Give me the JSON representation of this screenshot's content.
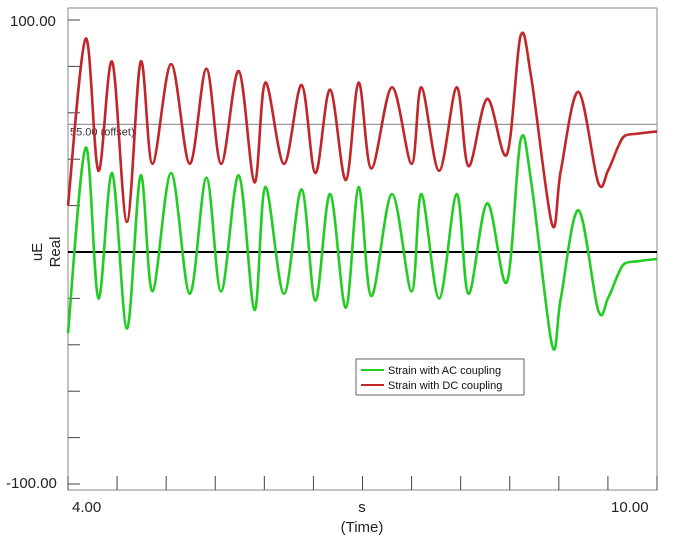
{
  "chart_data": {
    "type": "line",
    "title": "",
    "xlabel": "s",
    "xlabel_sub": "(Time)",
    "ylabel": "uE",
    "ylabel_sub": "Real",
    "x_tick_labels": [
      "4.00",
      "10.00"
    ],
    "y_tick_labels": [
      "100.00",
      "-100.00"
    ],
    "xlim": [
      4,
      10
    ],
    "ylim": [
      -100,
      100
    ],
    "grid": false,
    "zero_line": 0,
    "offset_line": {
      "value": 55,
      "label": "55.00 (offset)"
    },
    "legend_position": "lower-right",
    "series": [
      {
        "name": "Strain with AC coupling",
        "color": "#22cc22",
        "x": [
          4.0,
          4.18,
          4.31,
          4.45,
          4.6,
          4.74,
          4.86,
          5.05,
          5.24,
          5.41,
          5.56,
          5.74,
          5.9,
          6.01,
          6.2,
          6.38,
          6.52,
          6.67,
          6.83,
          6.96,
          7.09,
          7.3,
          7.5,
          7.6,
          7.78,
          7.96,
          8.08,
          8.27,
          8.47,
          8.61,
          8.72,
          8.93,
          9.02,
          9.2,
          9.4,
          9.5,
          9.6,
          9.67,
          9.8,
          10.0
        ],
        "values": [
          -35,
          45,
          -20,
          34,
          -33,
          33,
          -17,
          34,
          -18,
          32,
          -17,
          33,
          -25,
          28,
          -18,
          27,
          -21,
          25,
          -24,
          28,
          -19,
          25,
          -17,
          25,
          -20,
          25,
          -18,
          21,
          -13,
          48,
          30,
          -40,
          -20,
          18,
          -25,
          -20,
          -10,
          -5,
          -4,
          -3
        ]
      },
      {
        "name": "Strain with DC coupling",
        "color": "#c0262a",
        "x": [
          4.0,
          4.18,
          4.31,
          4.45,
          4.6,
          4.74,
          4.86,
          5.05,
          5.24,
          5.41,
          5.56,
          5.74,
          5.9,
          6.01,
          6.2,
          6.38,
          6.52,
          6.67,
          6.83,
          6.96,
          7.09,
          7.3,
          7.5,
          7.6,
          7.78,
          7.96,
          8.08,
          8.27,
          8.47,
          8.61,
          8.72,
          8.93,
          9.02,
          9.2,
          9.4,
          9.5,
          9.6,
          9.67,
          9.8,
          10.0
        ],
        "values": [
          20,
          92,
          35,
          82,
          13,
          82,
          38,
          81,
          38,
          79,
          38,
          78,
          30,
          73,
          38,
          72,
          34,
          70,
          31,
          73,
          36,
          71,
          38,
          71,
          35,
          71,
          37,
          66,
          42,
          93,
          75,
          12,
          35,
          69,
          30,
          35,
          45,
          50,
          51,
          52
        ]
      }
    ]
  }
}
